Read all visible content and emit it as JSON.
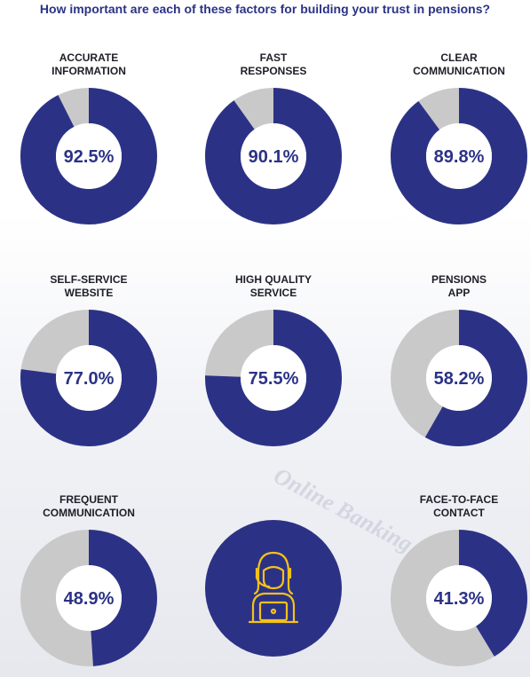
{
  "title": "How important are each of these factors for building your trust in pensions?",
  "colors": {
    "primary": "#2b3286",
    "remainder": "#c9c9c9",
    "title": "#2b3286"
  },
  "background_text": {
    "online_banking": "Online Banking"
  },
  "center_icon": "person-with-headset-at-laptop-icon",
  "chart_data": {
    "type": "pie",
    "variant": "donut",
    "title": "How important are each of these factors for building your trust in pensions?",
    "categories": [
      {
        "label_lines": [
          "ACCURATE",
          "INFORMATION"
        ],
        "value": 92.5,
        "display": "92.5%"
      },
      {
        "label_lines": [
          "FAST",
          "RESPONSES"
        ],
        "value": 90.1,
        "display": "90.1%"
      },
      {
        "label_lines": [
          "CLEAR",
          "COMMUNICATION"
        ],
        "value": 89.8,
        "display": "89.8%"
      },
      {
        "label_lines": [
          "SELF-SERVICE",
          "WEBSITE"
        ],
        "value": 77.0,
        "display": "77.0%"
      },
      {
        "label_lines": [
          "HIGH QUALITY",
          "SERVICE"
        ],
        "value": 75.5,
        "display": "75.5%"
      },
      {
        "label_lines": [
          "PENSIONS",
          "APP"
        ],
        "value": 58.2,
        "display": "58.2%"
      },
      {
        "label_lines": [
          "FREQUENT",
          "COMMUNICATION"
        ],
        "value": 48.9,
        "display": "48.9%"
      },
      {
        "label_lines": [
          "FACE-TO-FACE",
          "CONTACT"
        ],
        "value": 41.3,
        "display": "41.3%"
      }
    ],
    "max": 100
  }
}
